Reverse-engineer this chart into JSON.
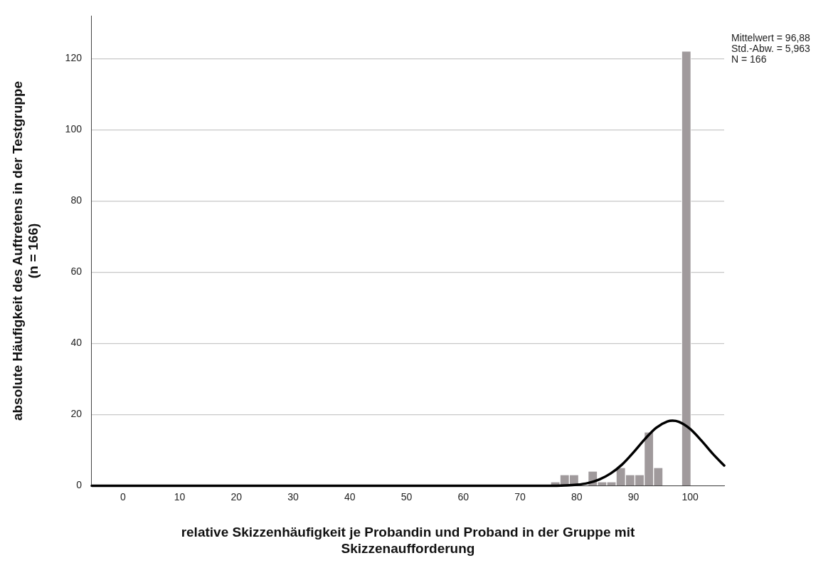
{
  "chart_data": {
    "type": "histogram",
    "xlabel": "relative Skizzenhäufigkeit je Probandin und Proband in der Gruppe mit\nSkizzenaufforderung",
    "ylabel": "absolute Häufigkeit des Auftretens in der Testgruppe\n(n = 166)",
    "bins": [
      75.4,
      77.05,
      78.7,
      80.35,
      82.0,
      83.65,
      85.3,
      86.95,
      88.6,
      90.25,
      91.9,
      93.55,
      95.2,
      96.85,
      98.5,
      100.15
    ],
    "values": [
      1,
      3,
      3,
      0,
      4,
      1,
      1,
      5,
      3,
      3,
      15,
      5,
      0,
      0,
      122
    ],
    "color": "#a09a9c",
    "series": [
      {
        "type": "line",
        "color": "#000000",
        "x": [
          -5.5,
          70,
          75,
          78,
          80,
          82,
          84,
          86,
          88,
          90,
          92,
          94,
          96,
          96.88,
          98,
          100,
          102,
          104,
          106
        ],
        "values": [
          0,
          0,
          0,
          0.1,
          0.3,
          0.8,
          1.8,
          3.5,
          6.0,
          9.4,
          13.1,
          16.3,
          18.1,
          18.3,
          18.0,
          16.0,
          12.7,
          9.0,
          5.7
        ]
      }
    ],
    "xlim": [
      -5.5,
      106
    ],
    "xticks": [
      0,
      10,
      20,
      30,
      40,
      50,
      60,
      70,
      80,
      90,
      100
    ],
    "ylim": [
      0,
      132
    ],
    "yticks": [
      0,
      20,
      40,
      60,
      80,
      100,
      120
    ],
    "grid": "y",
    "legend": false,
    "annotations": [
      "Mittelwert = 96,88",
      "Std.-Abw. = 5,963",
      "N = 166"
    ]
  }
}
